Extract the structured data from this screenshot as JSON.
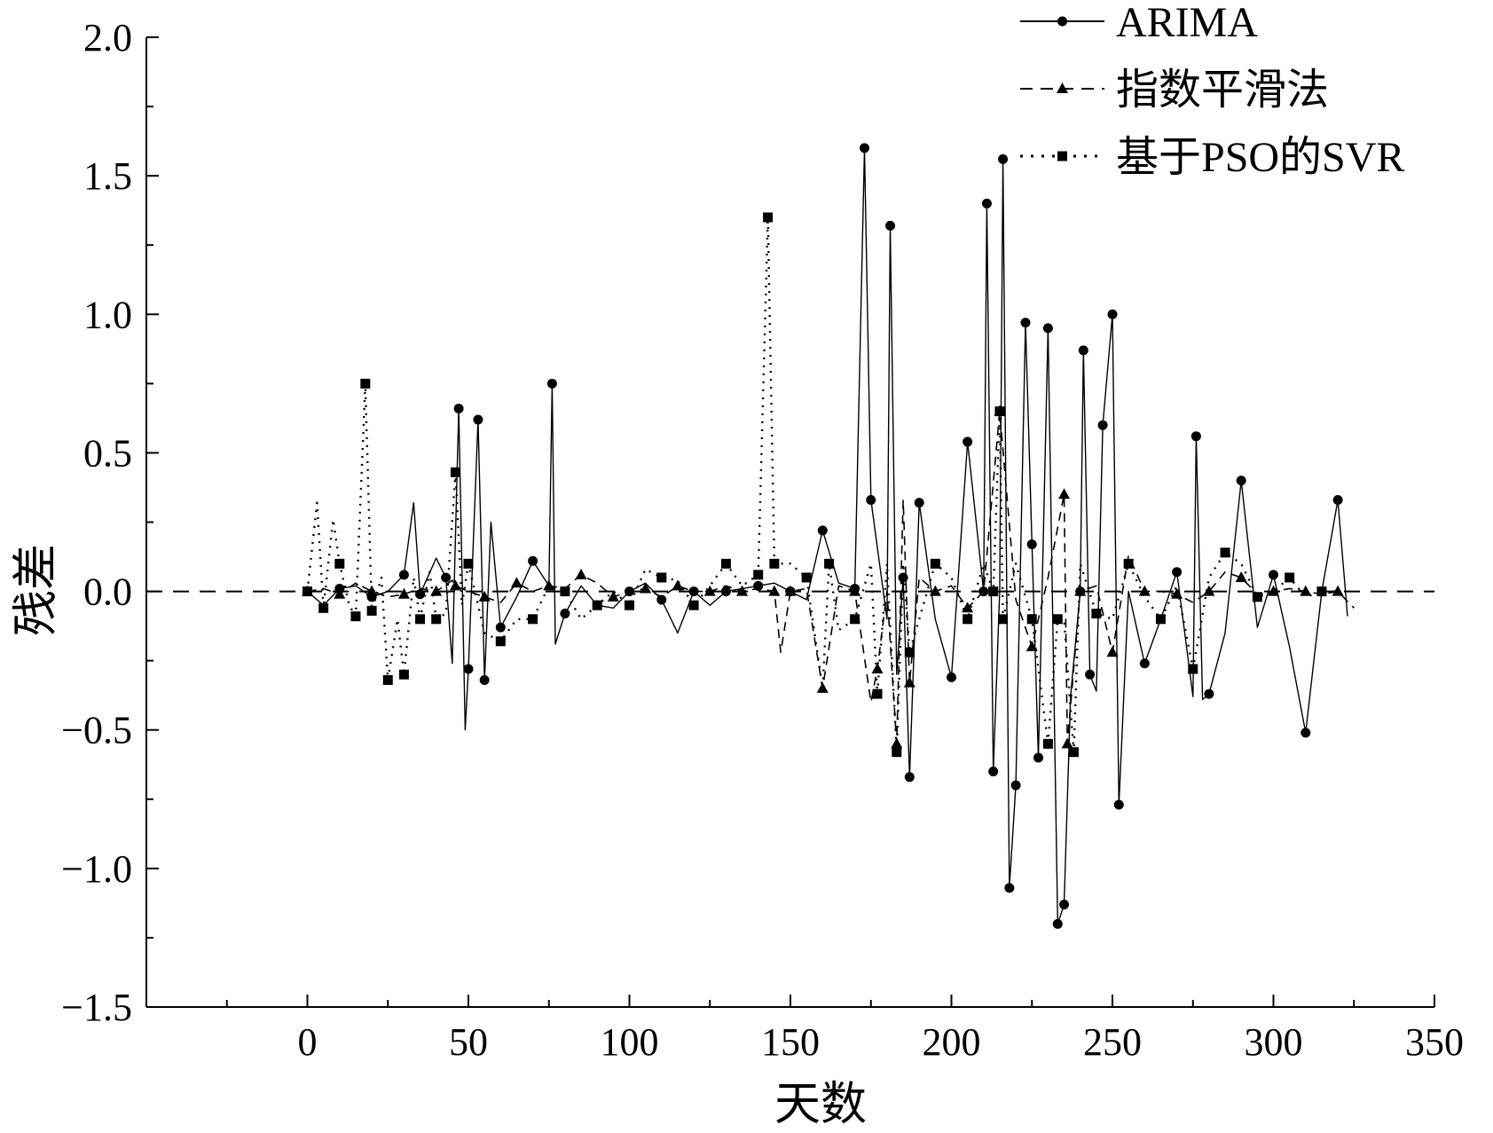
{
  "chart_data": {
    "type": "line",
    "xlabel": "天数",
    "ylabel": "残差",
    "xlim": [
      -50,
      350
    ],
    "ylim": [
      -1.5,
      2.0
    ],
    "xticks": [
      0,
      50,
      100,
      150,
      200,
      250,
      300,
      350
    ],
    "yticks": [
      -1.5,
      -1.0,
      -0.5,
      0.0,
      0.5,
      1.0,
      1.5,
      2.0
    ],
    "ytick_labels": [
      "−1.5",
      "−1.0",
      "−0.5",
      "0.0",
      "0.5",
      "1.0",
      "1.5",
      "2.0"
    ],
    "grid": false,
    "legend_position": "top-right",
    "zero_reference_line": true,
    "series": [
      {
        "name": "ARIMA",
        "line": "solid",
        "marker": "circle",
        "x": [
          0,
          5,
          10,
          15,
          20,
          25,
          30,
          33,
          35,
          40,
          43,
          45,
          47,
          49,
          50,
          53,
          55,
          57,
          60,
          65,
          70,
          75,
          76,
          77,
          80,
          85,
          90,
          95,
          100,
          105,
          110,
          115,
          120,
          125,
          130,
          135,
          140,
          145,
          150,
          155,
          160,
          165,
          170,
          173,
          175,
          180,
          181,
          183,
          185,
          187,
          190,
          195,
          200,
          205,
          210,
          211,
          213,
          215,
          216,
          218,
          220,
          223,
          225,
          227,
          230,
          233,
          235,
          237,
          240,
          241,
          243,
          245,
          247,
          250,
          252,
          255,
          260,
          265,
          270,
          275,
          276,
          278,
          280,
          285,
          290,
          295,
          300,
          305,
          310,
          315,
          320,
          323
        ],
        "y": [
          0.0,
          -0.05,
          0.01,
          0.02,
          -0.02,
          0.0,
          0.06,
          0.32,
          -0.01,
          0.12,
          0.05,
          -0.26,
          0.66,
          -0.5,
          -0.28,
          0.62,
          -0.32,
          0.25,
          -0.13,
          -0.02,
          0.11,
          0.02,
          0.75,
          -0.19,
          -0.08,
          0.02,
          -0.05,
          -0.06,
          0.0,
          0.03,
          -0.03,
          -0.15,
          0.0,
          -0.05,
          0.0,
          0.01,
          0.02,
          0.03,
          0.0,
          -0.03,
          0.22,
          0.03,
          0.01,
          1.6,
          0.33,
          -0.1,
          1.32,
          -0.3,
          0.05,
          -0.67,
          0.32,
          -0.1,
          -0.31,
          0.54,
          0.0,
          1.4,
          -0.65,
          0.0,
          1.56,
          -1.07,
          -0.7,
          0.97,
          0.17,
          -0.6,
          0.95,
          -1.2,
          -1.13,
          -0.38,
          0.0,
          0.87,
          -0.3,
          -0.36,
          0.6,
          1.0,
          -0.77,
          0.0,
          -0.26,
          -0.1,
          0.07,
          -0.38,
          0.56,
          -0.39,
          -0.37,
          -0.15,
          0.4,
          -0.13,
          0.06,
          -0.2,
          -0.51,
          0.0,
          0.33,
          -0.09
        ]
      },
      {
        "name": "指数平滑法",
        "line": "dashed",
        "marker": "triangle",
        "x": [
          0,
          5,
          10,
          15,
          20,
          25,
          30,
          35,
          40,
          45,
          46,
          50,
          55,
          60,
          65,
          70,
          75,
          80,
          85,
          90,
          95,
          100,
          105,
          110,
          115,
          120,
          125,
          130,
          135,
          140,
          145,
          147,
          150,
          155,
          160,
          165,
          170,
          175,
          177,
          180,
          183,
          185,
          187,
          190,
          195,
          200,
          205,
          210,
          215,
          220,
          225,
          230,
          235,
          236,
          240,
          245,
          250,
          255,
          260,
          265,
          270,
          275,
          280,
          285,
          290,
          295,
          300,
          305,
          310,
          315,
          320,
          325
        ],
        "y": [
          0.0,
          0.01,
          -0.01,
          0.03,
          0.0,
          -0.02,
          -0.01,
          0.01,
          0.0,
          0.04,
          0.02,
          0.0,
          -0.02,
          -0.04,
          0.03,
          0.0,
          0.02,
          0.01,
          0.06,
          0.03,
          -0.02,
          0.0,
          0.01,
          -0.02,
          0.02,
          0.0,
          0.0,
          0.02,
          0.0,
          0.01,
          0.0,
          -0.22,
          0.0,
          0.01,
          -0.35,
          0.02,
          0.0,
          -0.4,
          -0.28,
          0.0,
          -0.55,
          0.33,
          -0.33,
          0.05,
          0.0,
          0.02,
          -0.06,
          0.0,
          0.65,
          -0.03,
          -0.2,
          0.05,
          0.35,
          -0.55,
          0.0,
          0.02,
          -0.22,
          0.13,
          0.0,
          0.0,
          -0.01,
          -0.04,
          0.0,
          0.07,
          0.05,
          -0.01,
          0.0,
          0.01,
          0.0,
          -0.01,
          0.0,
          -0.06
        ]
      },
      {
        "name": "基于PSO的SVR",
        "line": "dotted",
        "marker": "square",
        "x": [
          0,
          3,
          5,
          8,
          10,
          13,
          15,
          18,
          20,
          23,
          25,
          28,
          30,
          33,
          35,
          38,
          40,
          43,
          46,
          48,
          50,
          55,
          60,
          65,
          70,
          75,
          80,
          85,
          90,
          95,
          100,
          105,
          110,
          115,
          120,
          125,
          130,
          135,
          140,
          143,
          145,
          150,
          155,
          160,
          162,
          165,
          170,
          175,
          177,
          180,
          183,
          185,
          187,
          190,
          195,
          200,
          205,
          210,
          213,
          215,
          216,
          220,
          225,
          230,
          233,
          235,
          238,
          240,
          245,
          250,
          255,
          260,
          265,
          270,
          275,
          280,
          285,
          290,
          295,
          300,
          305,
          310,
          315,
          320
        ],
        "y": [
          0.0,
          0.32,
          -0.06,
          0.26,
          0.1,
          -0.05,
          -0.09,
          0.75,
          -0.07,
          0.05,
          -0.32,
          -0.1,
          -0.3,
          0.05,
          -0.1,
          0.07,
          -0.1,
          -0.08,
          0.43,
          -0.05,
          0.1,
          -0.15,
          -0.18,
          -0.1,
          -0.1,
          0.02,
          0.0,
          -0.1,
          -0.05,
          0.0,
          -0.05,
          0.08,
          0.05,
          0.04,
          -0.05,
          0.02,
          0.1,
          0.02,
          0.06,
          1.35,
          0.1,
          0.1,
          0.05,
          -0.35,
          0.1,
          -0.14,
          -0.1,
          0.1,
          -0.37,
          0.1,
          -0.58,
          0.1,
          -0.22,
          -0.1,
          0.1,
          0.05,
          -0.1,
          0.1,
          0.0,
          0.65,
          -0.1,
          0.1,
          -0.1,
          -0.55,
          -0.1,
          -0.1,
          -0.58,
          0.1,
          -0.08,
          -0.1,
          0.1,
          -0.02,
          -0.1,
          0.02,
          -0.28,
          0.05,
          0.14,
          0.1,
          -0.02,
          0.0,
          0.05,
          -0.02,
          0.0,
          0.0
        ]
      }
    ]
  }
}
